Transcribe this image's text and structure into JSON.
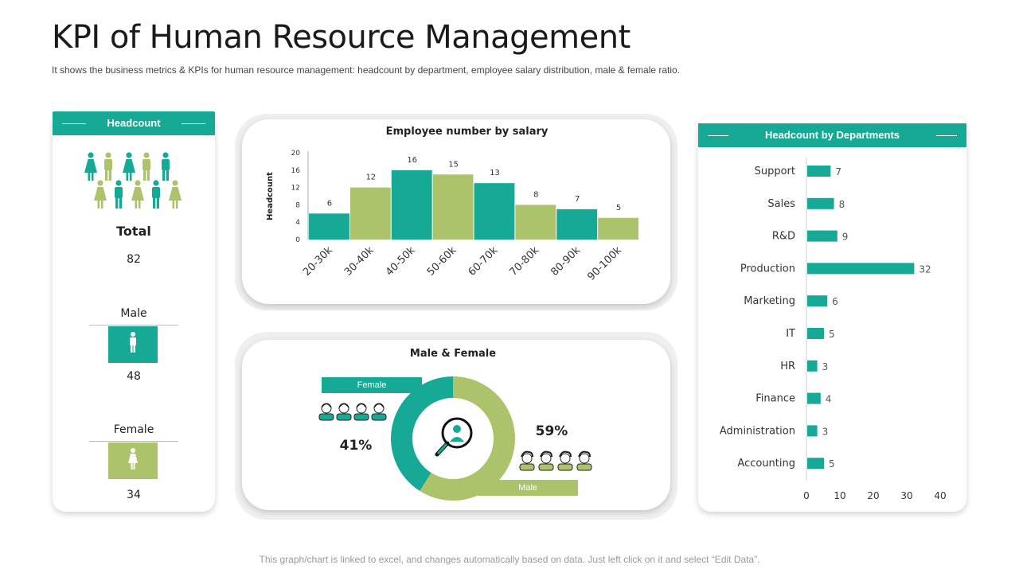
{
  "title": "KPI of Human Resource Management",
  "subtitle": "It shows the business metrics & KPIs for human resource management: headcount by department, employee salary distribution, male & female ratio.",
  "footer": "This graph/chart is linked to excel, and changes automatically based on data. Just left click on it and select “Edit Data”.",
  "colors": {
    "teal": "#16a996",
    "green": "#acc36c"
  },
  "headcount": {
    "header": "Headcount",
    "total_label": "Total",
    "total_value": "82",
    "male_label": "Male",
    "male_value": "48",
    "female_label": "Female",
    "female_value": "34"
  },
  "gender": {
    "title": "Male & Female",
    "female_tag": "Female",
    "male_tag": "Male",
    "female_pct": "41%",
    "male_pct": "59%"
  },
  "chart_data": [
    {
      "type": "bar",
      "title": "Employee number by salary",
      "ylabel": "Headcount",
      "xlabel": "",
      "categories": [
        "20-30k",
        "30-40k",
        "40-50k",
        "50-60k",
        "60-70k",
        "70-80k",
        "80-90k",
        "90-100k"
      ],
      "values": [
        6,
        12,
        16,
        15,
        13,
        8,
        7,
        5
      ],
      "bar_colors": [
        "#16a996",
        "#acc36c",
        "#16a996",
        "#acc36c",
        "#16a996",
        "#acc36c",
        "#16a996",
        "#acc36c"
      ],
      "ylim": [
        0,
        20
      ],
      "yticks": [
        0,
        4,
        8,
        12,
        16,
        20
      ]
    },
    {
      "type": "bar",
      "orientation": "horizontal",
      "title": "Headcount by Departments",
      "categories": [
        "Support",
        "Sales",
        "R&D",
        "Production",
        "Marketing",
        "IT",
        "HR",
        "Finance",
        "Administration",
        "Accounting"
      ],
      "values": [
        7,
        8,
        9,
        32,
        6,
        5,
        3,
        4,
        3,
        5
      ],
      "xlim": [
        0,
        40
      ],
      "xticks": [
        0,
        10,
        20,
        30,
        40
      ]
    },
    {
      "type": "pie",
      "title": "Male & Female",
      "labels": [
        "Female",
        "Male"
      ],
      "values": [
        41,
        59
      ],
      "colors": [
        "#16a996",
        "#acc36c"
      ]
    }
  ]
}
